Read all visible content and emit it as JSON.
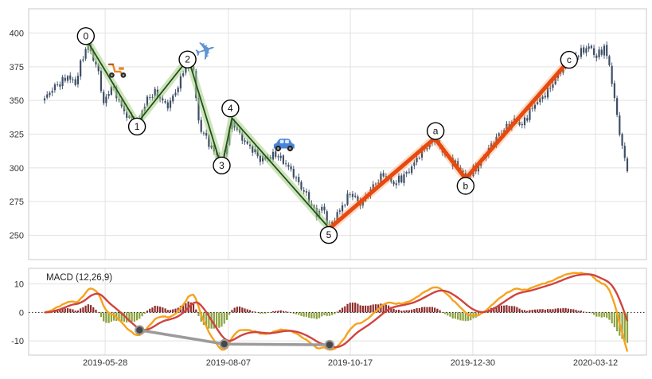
{
  "chart_data": {
    "type": "candlestick",
    "title": "",
    "x_axis": {
      "ticks": [
        {
          "pos": 23.6,
          "label": "2019-05-28"
        },
        {
          "pos": 71.6,
          "label": "2019-08-07"
        },
        {
          "pos": 119.1,
          "label": "2019-10-17"
        },
        {
          "pos": 166.8,
          "label": "2019-12-30"
        },
        {
          "pos": 214.6,
          "label": "2020-03-12"
        }
      ]
    },
    "price_panel": {
      "y_ticks": [
        250,
        275,
        300,
        325,
        350,
        375,
        400
      ],
      "y_range": [
        232,
        418
      ],
      "candles": {
        "n": 228,
        "close_path_anchors": [
          [
            0,
            350
          ],
          [
            4,
            360
          ],
          [
            9,
            369
          ],
          [
            12,
            362
          ],
          [
            15,
            382
          ],
          [
            17,
            391
          ],
          [
            21,
            372
          ],
          [
            23,
            348
          ],
          [
            26,
            360
          ],
          [
            31,
            341
          ],
          [
            36,
            334
          ],
          [
            40,
            350
          ],
          [
            43,
            355
          ],
          [
            48,
            347
          ],
          [
            52,
            360
          ],
          [
            56,
            380
          ],
          [
            58,
            372
          ],
          [
            60,
            334
          ],
          [
            65,
            315
          ],
          [
            69,
            301
          ],
          [
            73,
            336
          ],
          [
            78,
            319
          ],
          [
            84,
            306
          ],
          [
            90,
            311
          ],
          [
            96,
            297
          ],
          [
            102,
            281
          ],
          [
            106,
            264
          ],
          [
            108,
            270
          ],
          [
            111,
            256
          ],
          [
            114,
            267
          ],
          [
            119,
            281
          ],
          [
            123,
            272
          ],
          [
            128,
            288
          ],
          [
            132,
            295
          ],
          [
            136,
            287
          ],
          [
            141,
            297
          ],
          [
            146,
            309
          ],
          [
            152,
            321
          ],
          [
            158,
            306
          ],
          [
            164,
            293
          ],
          [
            169,
            303
          ],
          [
            174,
            316
          ],
          [
            179,
            329
          ],
          [
            183,
            337
          ],
          [
            186,
            331
          ],
          [
            191,
            347
          ],
          [
            196,
            358
          ],
          [
            201,
            371
          ],
          [
            204,
            378
          ],
          [
            208,
            386
          ],
          [
            212,
            390
          ],
          [
            215,
            381
          ],
          [
            218,
            389
          ],
          [
            220,
            377
          ],
          [
            222,
            352
          ],
          [
            225,
            315
          ],
          [
            227,
            298
          ]
        ]
      },
      "elliott_waves": {
        "impulse": [
          {
            "label": "0",
            "i": 17,
            "price": 393,
            "label_offset": [
              -3,
              -8
            ]
          },
          {
            "label": "1",
            "i": 36,
            "price": 333,
            "label_offset": [
              0,
              4
            ]
          },
          {
            "label": "2",
            "i": 56,
            "price": 381,
            "label_offset": [
              -1,
              1
            ]
          },
          {
            "label": "3",
            "i": 69,
            "price": 300,
            "label_offset": [
              0,
              -3
            ]
          },
          {
            "label": "4",
            "i": 73,
            "price": 337,
            "label_offset": [
              -2,
              -12
            ]
          },
          {
            "label": "5",
            "i": 111,
            "price": 255,
            "label_offset": [
              -1,
              8
            ]
          }
        ],
        "correction": [
          {
            "label": "5",
            "i": 111,
            "price": 255,
            "label_offset": null
          },
          {
            "label": "a",
            "i": 152,
            "price": 322,
            "label_offset": [
              1,
              -9
            ]
          },
          {
            "label": "b",
            "i": 164,
            "price": 292,
            "label_offset": [
              0,
              9
            ]
          },
          {
            "label": "c",
            "i": 204,
            "price": 379,
            "label_offset": [
              1,
              -2
            ]
          }
        ]
      },
      "annotations": [
        {
          "icon": "scooter-icon",
          "i": 28.5,
          "price": 372
        },
        {
          "icon": "airplane-icon",
          "i": 62.6,
          "price": 387
        },
        {
          "icon": "car-icon",
          "i": 93.3,
          "price": 317
        }
      ]
    },
    "macd_panel": {
      "label": "MACD (12,26,9)",
      "fast": 12,
      "slow": 26,
      "signal": 9,
      "y_ticks": [
        10,
        0,
        -10
      ],
      "y_range": [
        -15,
        15.5
      ],
      "divergence_points": [
        {
          "i": 37,
          "value": -6.2
        },
        {
          "i": 70,
          "value": -11.1
        },
        {
          "i": 111,
          "value": -11.4
        }
      ]
    },
    "colors": {
      "candle": "#3d4e66",
      "grid": "#e2e2e2",
      "border": "#c8c8c8",
      "impulse_line": "#1c511c",
      "impulse_glow": "rgba(168,205,132,0.55)",
      "correction_line": "#e8490f",
      "correction_glow": "rgba(245,140,70,0.30)",
      "macd_line": "#f6a21d",
      "signal_line": "#cf4440",
      "hist_positive": "#8f2d2d",
      "hist_negative": "#8aa23c",
      "divergence_line": "#9b9b9b",
      "divergence_dot": "#474747",
      "zero_line": "#1a1a1a",
      "axis_text": "#333333"
    }
  }
}
